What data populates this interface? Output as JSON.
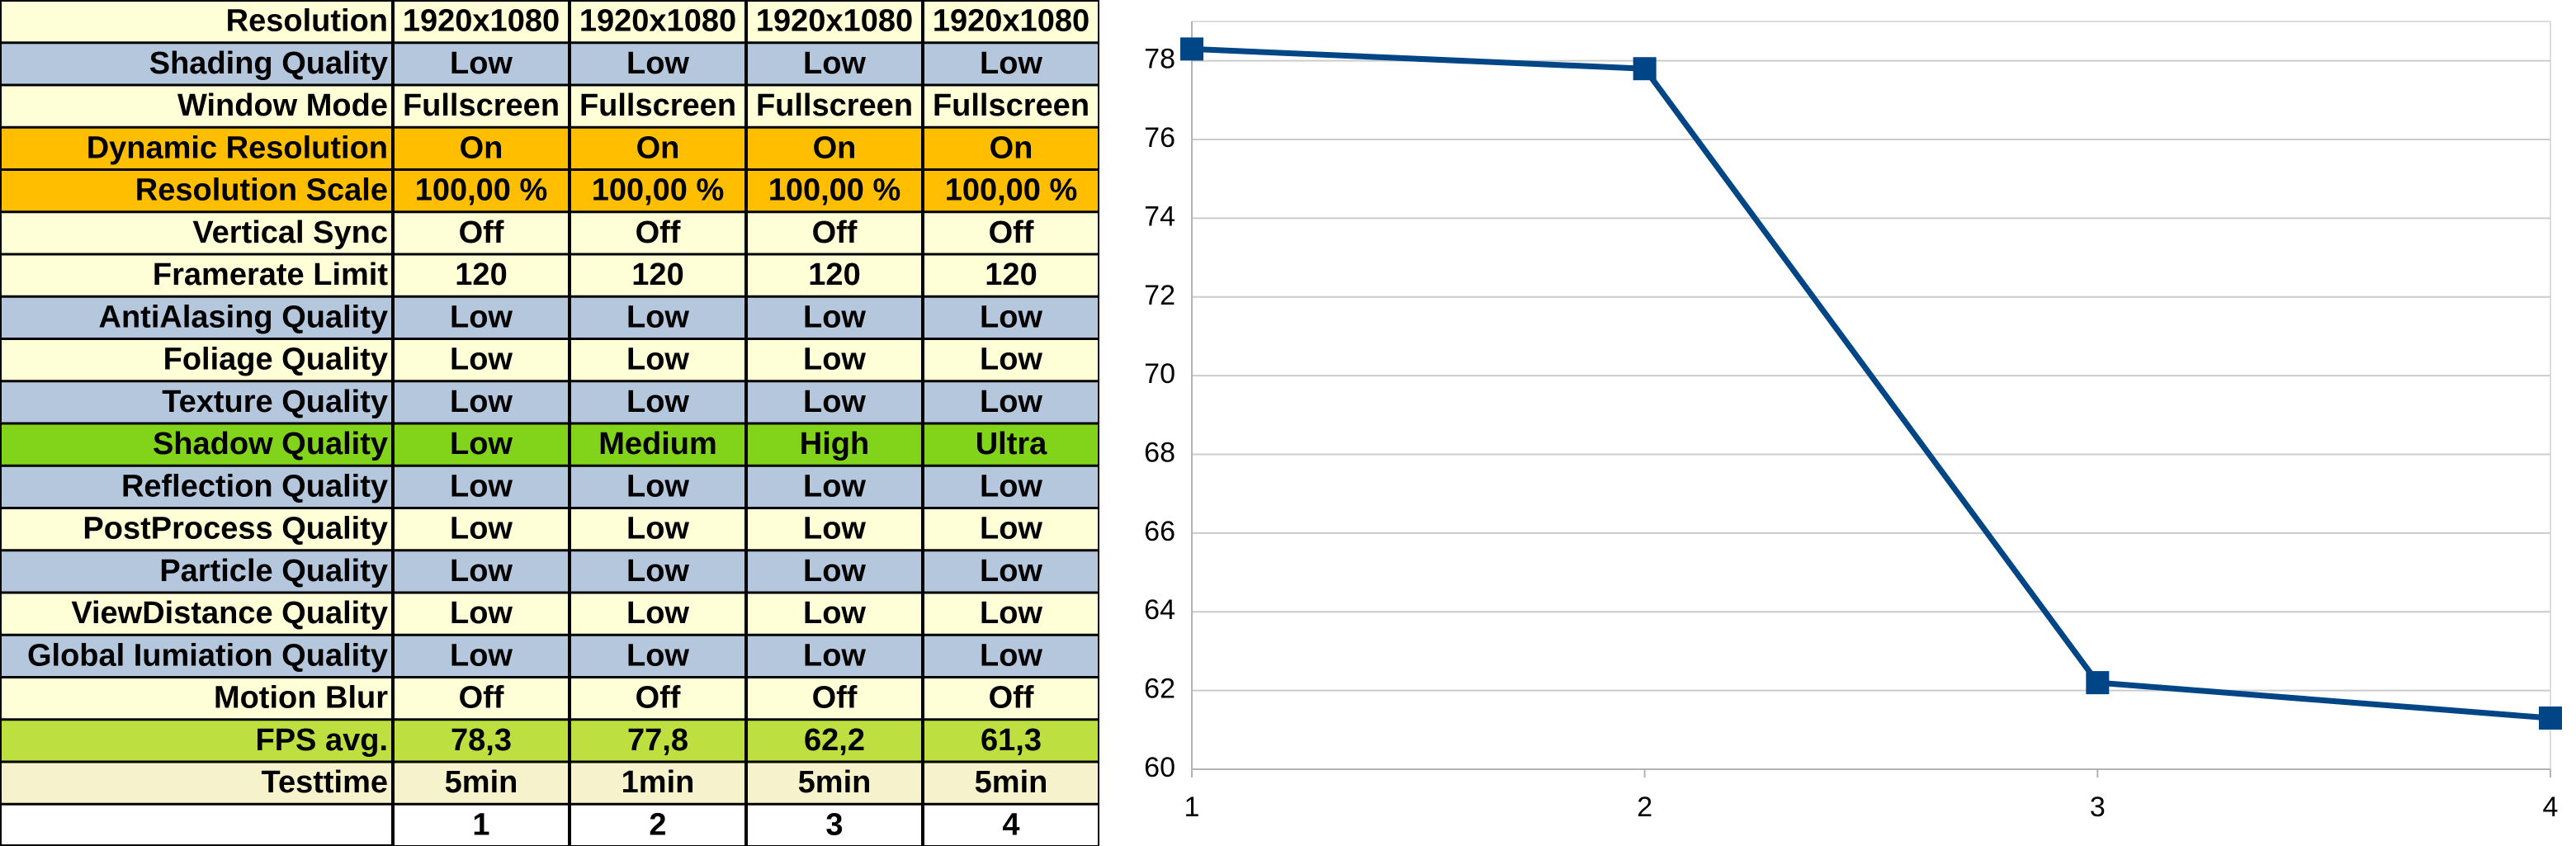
{
  "table": {
    "rows": [
      [
        "Resolution",
        "1920x1080",
        "1920x1080",
        "1920x1080",
        "1920x1080"
      ],
      [
        "Shading Quality",
        "Low",
        "Low",
        "Low",
        "Low"
      ],
      [
        "Window Mode",
        "Fullscreen",
        "Fullscreen",
        "Fullscreen",
        "Fullscreen"
      ],
      [
        "Dynamic Resolution",
        "On",
        "On",
        "On",
        "On"
      ],
      [
        "Resolution Scale",
        "100,00 %",
        "100,00 %",
        "100,00 %",
        "100,00 %"
      ],
      [
        "Vertical Sync",
        "Off",
        "Off",
        "Off",
        "Off"
      ],
      [
        "Framerate Limit",
        "120",
        "120",
        "120",
        "120"
      ],
      [
        "AntiAlasing Quality",
        "Low",
        "Low",
        "Low",
        "Low"
      ],
      [
        "Foliage Quality",
        "Low",
        "Low",
        "Low",
        "Low"
      ],
      [
        "Texture Quality",
        "Low",
        "Low",
        "Low",
        "Low"
      ],
      [
        "Shadow Quality",
        "Low",
        "Medium",
        "High",
        "Ultra"
      ],
      [
        "Reflection Quality",
        "Low",
        "Low",
        "Low",
        "Low"
      ],
      [
        "PostProcess Quality",
        "Low",
        "Low",
        "Low",
        "Low"
      ],
      [
        "Particle Quality",
        "Low",
        "Low",
        "Low",
        "Low"
      ],
      [
        "ViewDistance Quality",
        "Low",
        "Low",
        "Low",
        "Low"
      ],
      [
        "Global Iumiation Quality",
        "Low",
        "Low",
        "Low",
        "Low"
      ],
      [
        "Motion Blur",
        "Off",
        "Off",
        "Off",
        "Off"
      ],
      [
        "FPS avg.",
        "78,3",
        "77,8",
        "62,2",
        "61,3"
      ],
      [
        "Testtime",
        "5min",
        "1min",
        "5min",
        "5min"
      ]
    ],
    "footer": [
      "1",
      "2",
      "3",
      "4"
    ]
  },
  "chart_data": {
    "type": "line",
    "x": [
      1,
      2,
      3,
      4
    ],
    "series": [
      {
        "name": "FPS avg.",
        "color": "#004586",
        "values": [
          78.3,
          77.8,
          62.2,
          61.3
        ]
      }
    ],
    "xlim": [
      1,
      4
    ],
    "xticks": [
      1,
      2,
      3,
      4
    ],
    "ylim": [
      60,
      79
    ],
    "yticks": [
      60,
      62,
      64,
      66,
      68,
      70,
      72,
      74,
      76,
      78
    ],
    "grid": true
  }
}
